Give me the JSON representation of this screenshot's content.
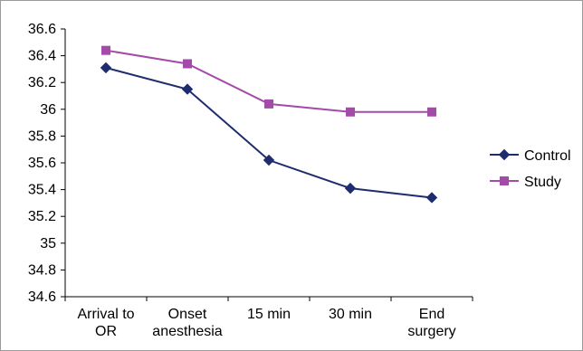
{
  "chart_data": {
    "type": "line",
    "title": "",
    "xlabel": "",
    "ylabel": "",
    "categories": [
      [
        "Arrival to",
        "OR"
      ],
      [
        "Onset",
        "anesthesia"
      ],
      [
        "15 min",
        ""
      ],
      [
        "30 min",
        ""
      ],
      [
        "End",
        "surgery"
      ]
    ],
    "ylim": [
      34.6,
      36.6
    ],
    "yticks": [
      "34.6",
      "34.8",
      "35",
      "35.2",
      "35.4",
      "35.6",
      "35.8",
      "36",
      "36.2",
      "36.4",
      "36.6"
    ],
    "grid": false,
    "legend_position": "right",
    "series": [
      {
        "name": "Control",
        "values": [
          36.31,
          36.15,
          35.62,
          35.41,
          35.34
        ],
        "color": "#1f2d6e",
        "marker": "diamond"
      },
      {
        "name": "Study",
        "values": [
          36.44,
          36.34,
          36.04,
          35.98,
          35.98
        ],
        "color": "#a44aa8",
        "marker": "square"
      }
    ]
  }
}
